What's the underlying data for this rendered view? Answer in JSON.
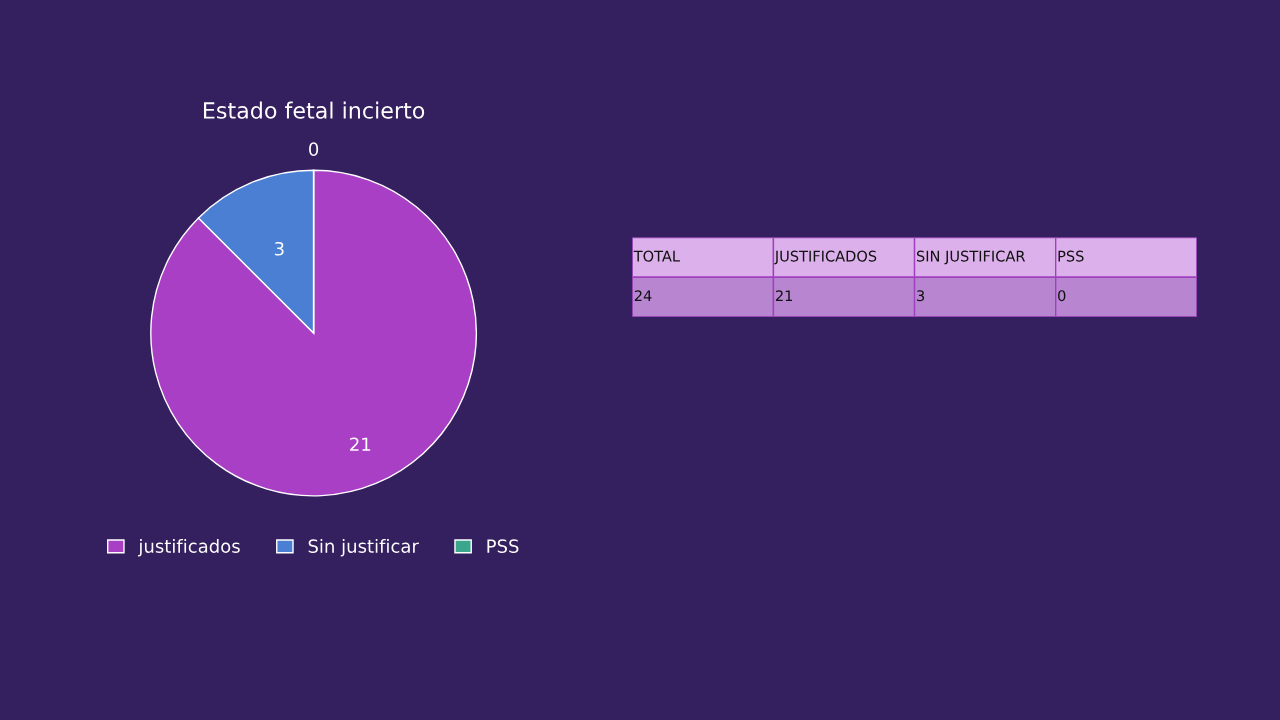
{
  "chart_data": [
    {
      "type": "pie",
      "title": "Estado fetal incierto",
      "categories": [
        "justificados",
        "Sin justificar",
        "PSS"
      ],
      "values": [
        21,
        3,
        0
      ],
      "colors": [
        "#a93fc4",
        "#4a7fd4",
        "#3aa68c"
      ],
      "value_labels": [
        "21",
        "3",
        "0"
      ],
      "legend": "bottom"
    },
    {
      "type": "other",
      "categories": [
        "TOTAL",
        "JUSTIFICADOS",
        "SIN JUSTIFICAR",
        "PSS"
      ],
      "values": [
        24,
        21,
        3,
        0
      ],
      "data_labels": true
    }
  ]
}
